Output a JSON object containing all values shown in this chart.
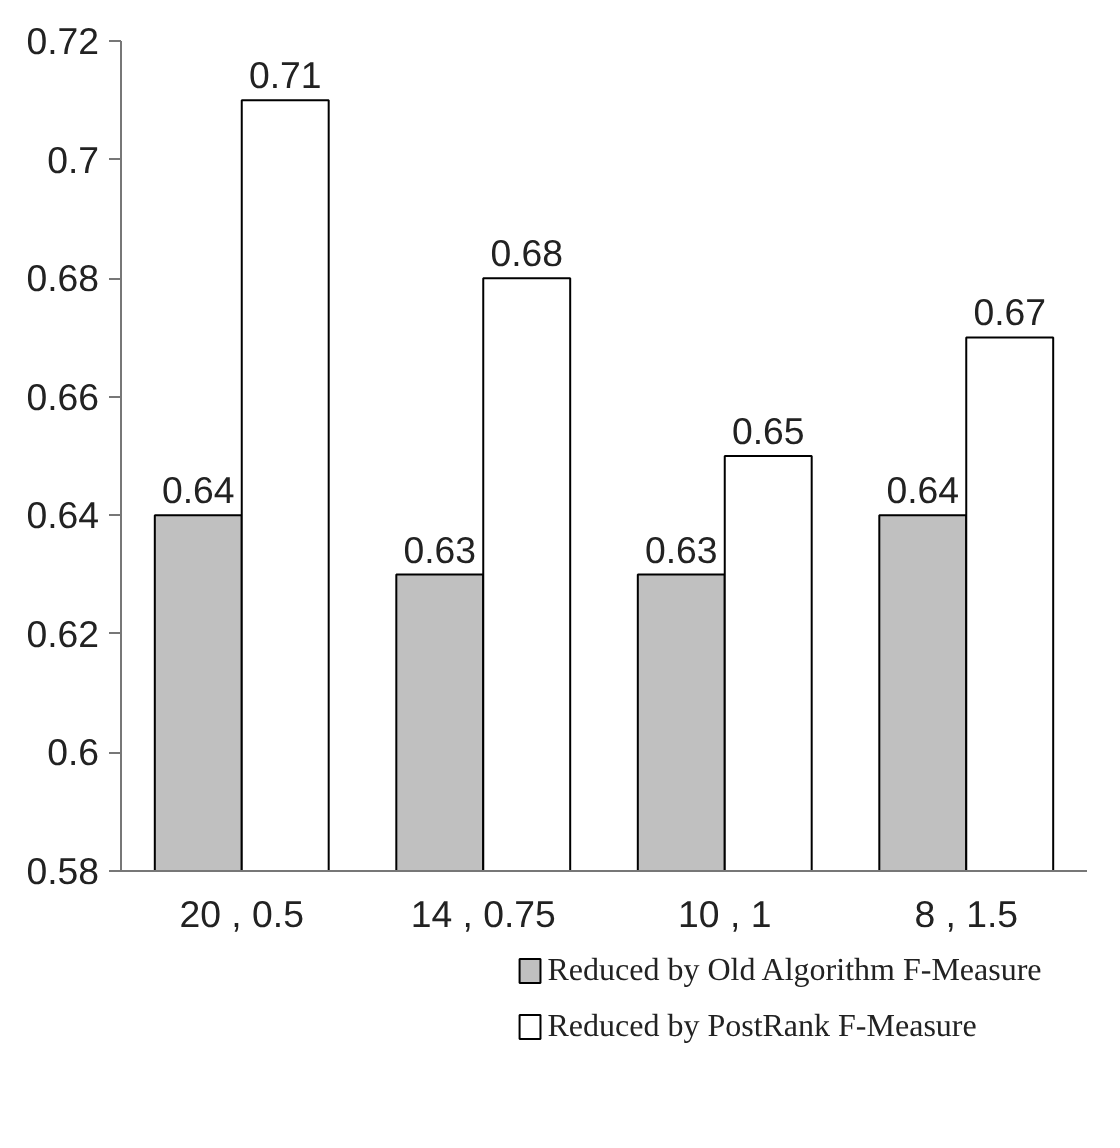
{
  "chart_data": {
    "type": "bar",
    "categories": [
      "20 , 0.5",
      "14 , 0.75",
      "10 , 1",
      "8 , 1.5"
    ],
    "series": [
      {
        "name": "Reduced by Old Algorithm F-Measure",
        "color": "#c0c0c0",
        "values": [
          0.64,
          0.63,
          0.63,
          0.64
        ]
      },
      {
        "name": "Reduced by PostRank F-Measure",
        "color": "#ffffff",
        "values": [
          0.71,
          0.68,
          0.65,
          0.67
        ]
      }
    ],
    "ylim": [
      0.58,
      0.72
    ],
    "yticks": [
      0.58,
      0.6,
      0.62,
      0.64,
      0.66,
      0.68,
      0.7,
      0.72
    ],
    "data_labels": true,
    "grid": false,
    "legend": "bottom"
  }
}
